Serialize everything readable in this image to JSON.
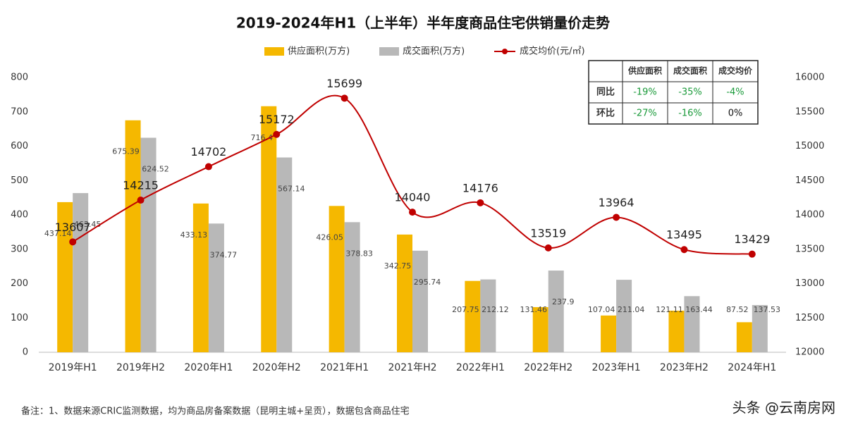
{
  "chart_data": {
    "type": "bar-line",
    "title": "2019-2024年H1（上半年）半年度商品住宅供销量价走势",
    "categories": [
      "2019年H1",
      "2019年H2",
      "2020年H1",
      "2020年H2",
      "2021年H1",
      "2021年H2",
      "2022年H1",
      "2022年H2",
      "2023年H1",
      "2023年H2",
      "2024年H1"
    ],
    "series": [
      {
        "name": "供应面积(万方)",
        "color": "#f5b800",
        "type": "bar",
        "values": [
          437.14,
          675.39,
          433.13,
          716.4,
          426.05,
          342.75,
          207.75,
          131.46,
          107.04,
          121.11,
          87.52
        ]
      },
      {
        "name": "成交面积(万方)",
        "color": "#b8b8b8",
        "type": "bar",
        "values": [
          463.45,
          624.52,
          374.77,
          567.14,
          378.83,
          295.74,
          212.12,
          237.9,
          211.04,
          163.44,
          137.53
        ]
      },
      {
        "name": "成交均价(元/㎡)",
        "color": "#c00000",
        "type": "line",
        "axis": "y2",
        "values": [
          13607,
          14215,
          14702,
          15172,
          15699,
          14040,
          14176,
          13519,
          13964,
          13495,
          13429
        ]
      }
    ],
    "ylim": [
      0,
      800
    ],
    "yticks": [
      0,
      100,
      200,
      300,
      400,
      500,
      600,
      700,
      800
    ],
    "y2lim": [
      12000,
      16000
    ],
    "y2ticks": [
      12000,
      12500,
      13000,
      13500,
      14000,
      14500,
      15000,
      15500,
      16000
    ],
    "grid": false,
    "table": {
      "header": [
        "供应面积",
        "成交面积",
        "成交均价"
      ],
      "rows": [
        {
          "label": "同比",
          "cells": [
            "-19%",
            "-35%",
            "-4%"
          ]
        },
        {
          "label": "环比",
          "cells": [
            "-27%",
            "-16%",
            "0%"
          ]
        }
      ]
    },
    "note": "备注：1、数据来源CRIC监测数据，均为商品房备案数据（昆明主城+呈贡），数据包含商品住宅",
    "watermark": "头条 @云南房网"
  }
}
